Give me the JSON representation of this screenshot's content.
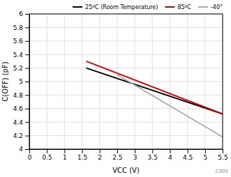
{
  "chart_data": {
    "type": "line",
    "xlabel": "VCC (V)",
    "ylabel": "C(OFF) (pF)",
    "annotations": [
      "C005"
    ],
    "xlim": [
      0,
      5.5
    ],
    "ylim": [
      4,
      6
    ],
    "xticks": [
      0,
      0.5,
      1,
      1.5,
      2,
      2.5,
      3,
      3.5,
      4,
      4.5,
      5,
      5.5
    ],
    "yticks": [
      4,
      4.2,
      4.4,
      4.6,
      4.8,
      5,
      5.2,
      5.4,
      5.6,
      5.8,
      6
    ],
    "grid": true,
    "legend": "top-right",
    "series": [
      {
        "name": "25ºC (Room Temperature)",
        "color": "#000000",
        "x": [
          1.62,
          5.5
        ],
        "values": [
          5.2,
          4.52
        ]
      },
      {
        "name": "85ºC",
        "color": "#cc0000",
        "x": [
          1.62,
          5.5
        ],
        "values": [
          5.3,
          4.52
        ]
      },
      {
        "name": "-40°",
        "color": "#aaaaaa",
        "x": [
          2.5,
          5.5
        ],
        "values": [
          5.1,
          4.18
        ]
      }
    ]
  }
}
